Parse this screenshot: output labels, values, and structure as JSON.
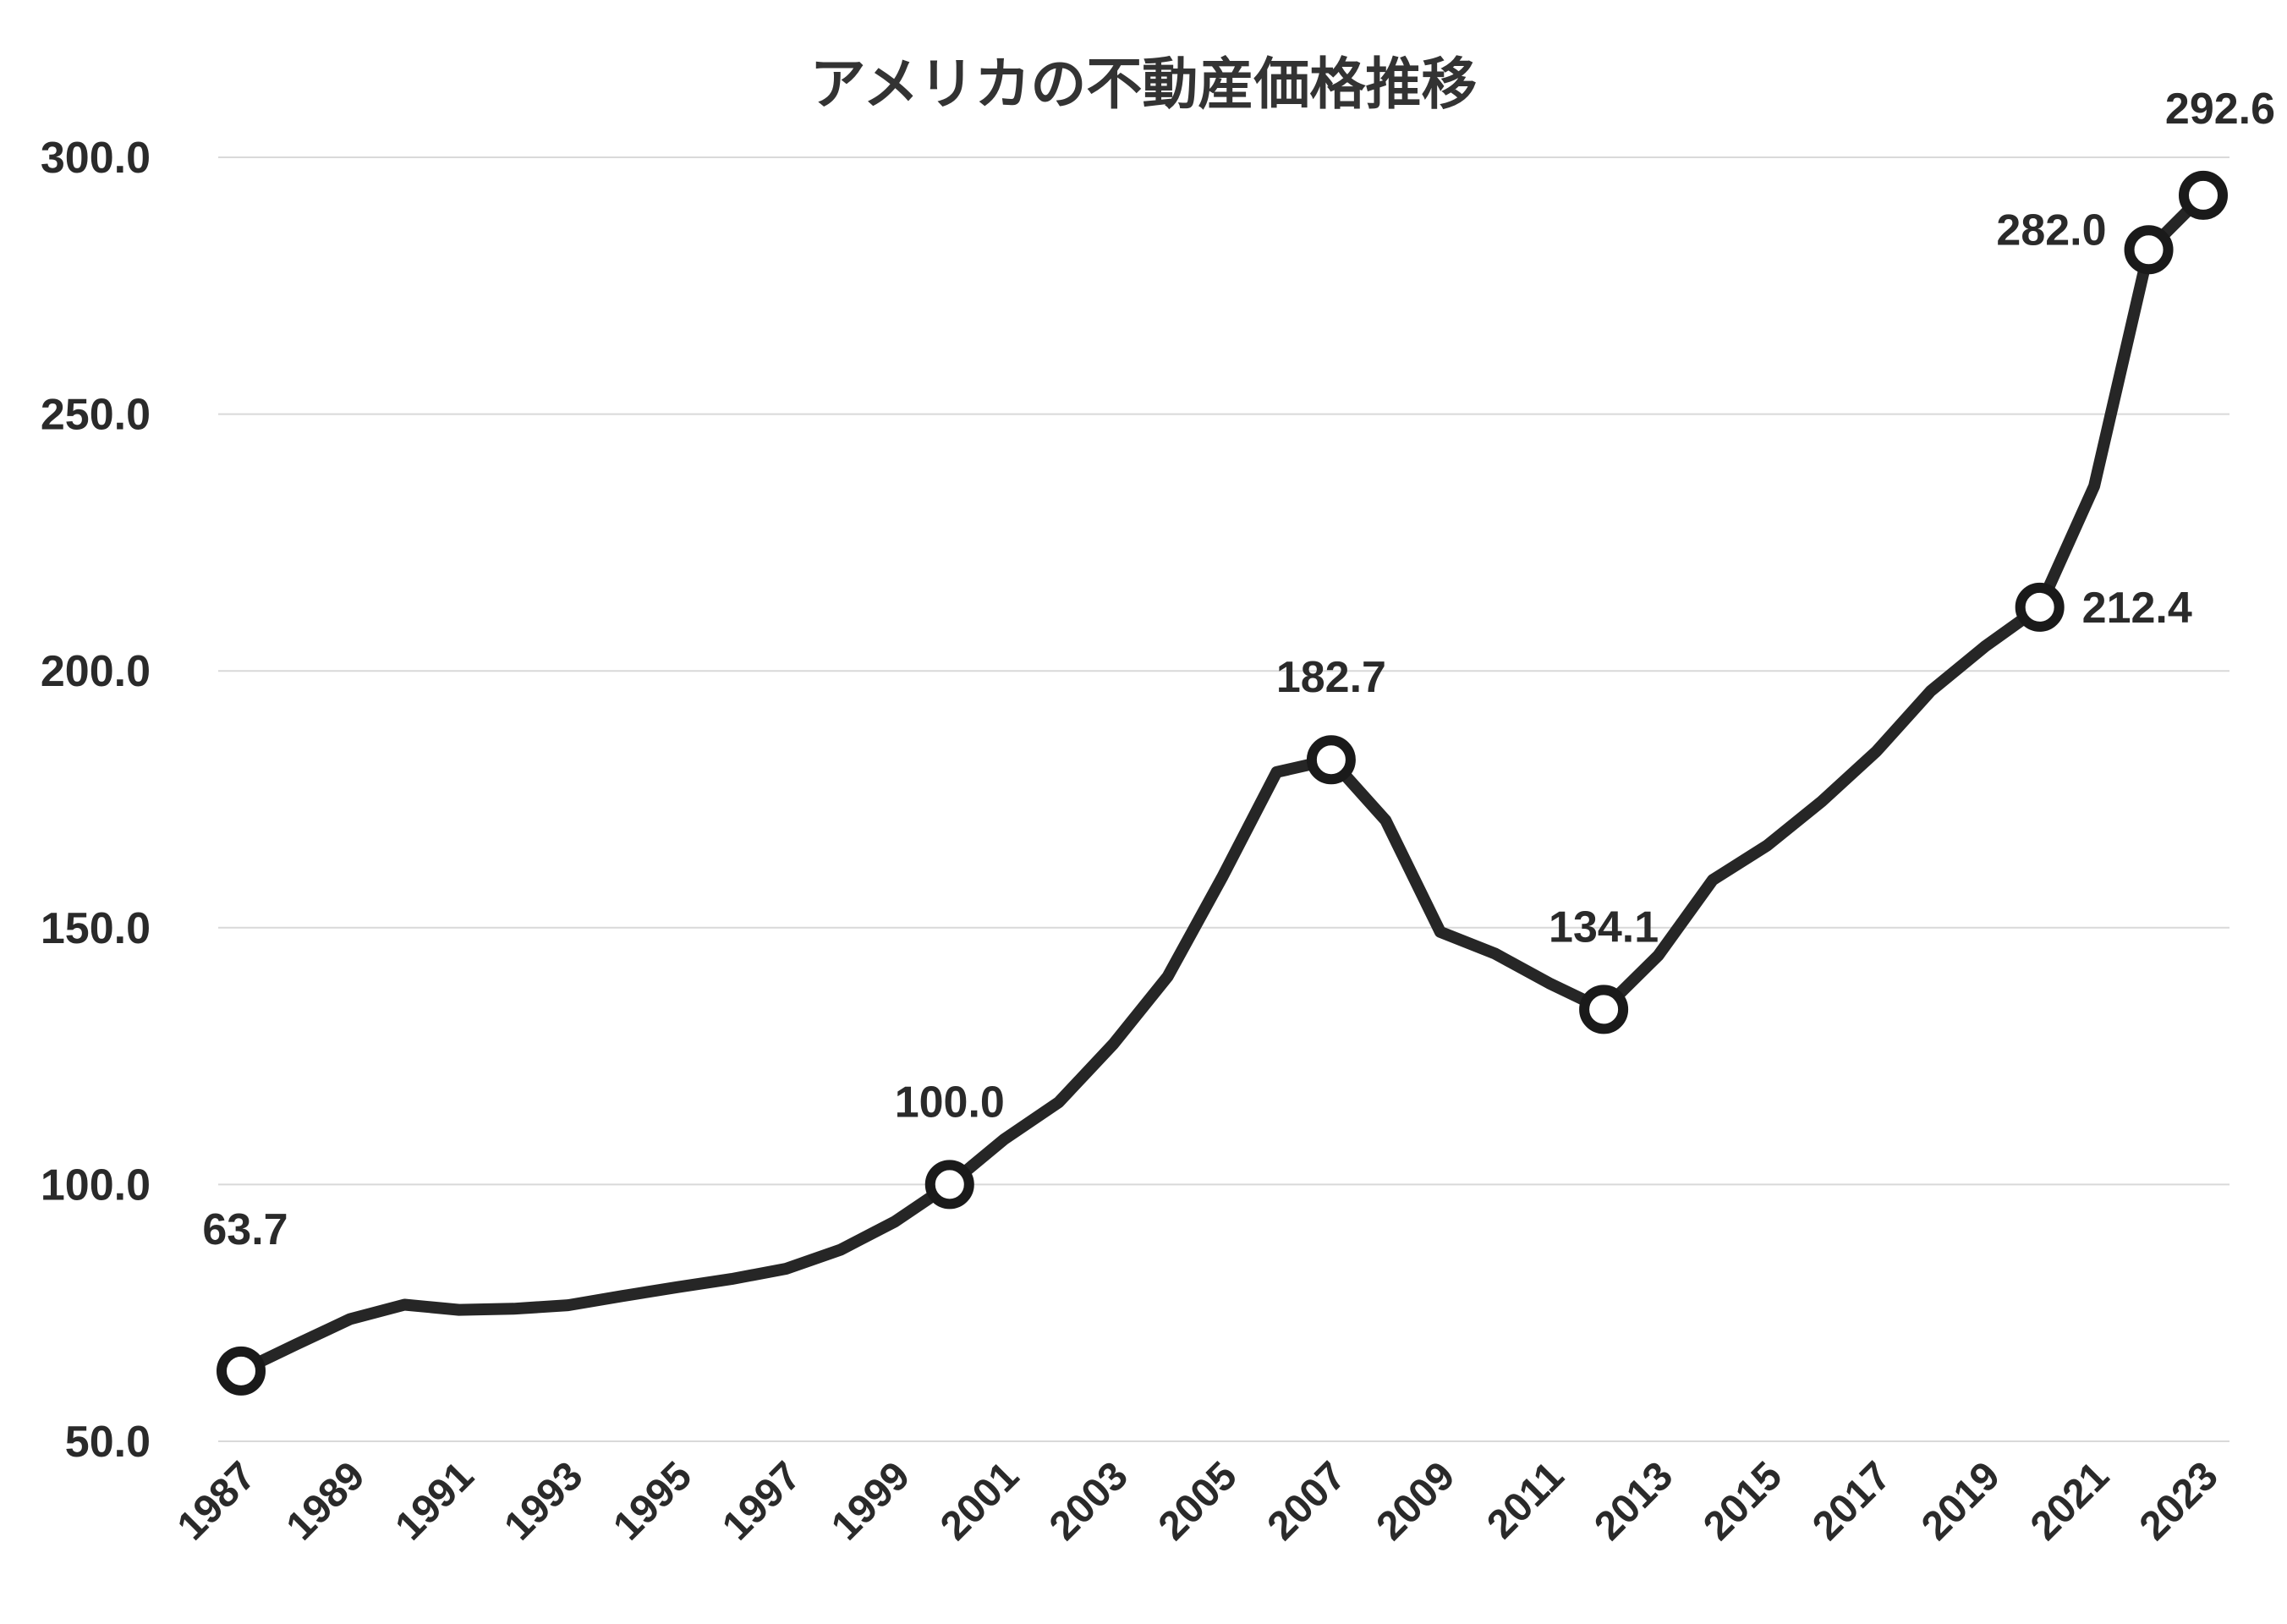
{
  "chart_data": {
    "type": "line",
    "title": "アメリカの不動産価格推移",
    "xlabel": "",
    "ylabel": "",
    "ylim": [
      50,
      300
    ],
    "yticks": [
      "50.0",
      "100.0",
      "150.0",
      "200.0",
      "250.0",
      "300.0"
    ],
    "xticks": [
      "1987",
      "1989",
      "1991",
      "1993",
      "1995",
      "1997",
      "1999",
      "2001",
      "2003",
      "2005",
      "2007",
      "2009",
      "2011",
      "2013",
      "2015",
      "2017",
      "2019",
      "2021",
      "2023"
    ],
    "grid": true,
    "legend": "none",
    "line_color": "#262626",
    "x": [
      1987,
      1988,
      1989,
      1990,
      1991,
      1992,
      1993,
      1994,
      1995,
      1996,
      1997,
      1998,
      1999,
      2000,
      2001,
      2002,
      2003,
      2004,
      2005,
      2006,
      2007,
      2008,
      2009,
      2010,
      2011,
      2012,
      2013,
      2014,
      2015,
      2016,
      2017,
      2018,
      2019,
      2020,
      2021,
      2022,
      2023
    ],
    "values": [
      63.7,
      68.8,
      73.8,
      76.6,
      75.6,
      75.8,
      76.5,
      78.3,
      80.0,
      81.6,
      83.6,
      87.3,
      92.8,
      100.0,
      108.8,
      116.0,
      127.3,
      140.5,
      159.8,
      180.3,
      182.7,
      170.9,
      149.2,
      145.0,
      139.2,
      134.1,
      144.6,
      159.3,
      166.0,
      174.6,
      184.3,
      196.1,
      204.8,
      212.4,
      236.0,
      282.0,
      292.6
    ],
    "annotations": [
      {
        "x": 1987,
        "value": 63.7,
        "label": "63.7",
        "position": "above"
      },
      {
        "x": 2000,
        "value": 100.0,
        "label": "100.0",
        "position": "above"
      },
      {
        "x": 2007,
        "value": 182.7,
        "label": "182.7",
        "position": "above"
      },
      {
        "x": 2012,
        "value": 134.1,
        "label": "134.1",
        "position": "above"
      },
      {
        "x": 2020,
        "value": 212.4,
        "label": "212.4",
        "position": "right"
      },
      {
        "x": 2022,
        "value": 282.0,
        "label": "282.0",
        "position": "left"
      },
      {
        "x": 2023,
        "value": 292.6,
        "label": "292.6",
        "position": "above"
      }
    ]
  }
}
